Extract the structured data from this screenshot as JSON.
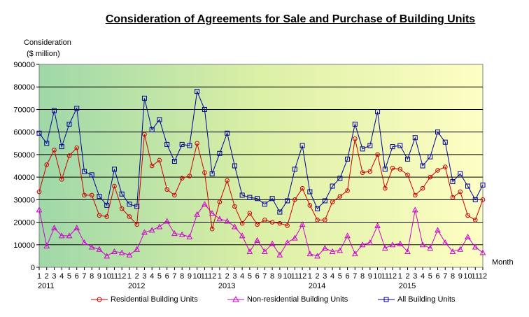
{
  "chart_data": {
    "type": "line",
    "title": "Consideration of Agreements for Sale and Purchase of Building Units",
    "ylabel_line1": "Consideration",
    "ylabel_line2": "($ million)",
    "xlabel": "Month",
    "ylim": [
      0,
      90000
    ],
    "yticks": [
      "0",
      "10000",
      "20000",
      "30000",
      "40000",
      "50000",
      "60000",
      "70000",
      "80000",
      "90000"
    ],
    "month_labels": [
      "1",
      "2",
      "3",
      "4",
      "5",
      "6",
      "7",
      "8",
      "9",
      "10",
      "11",
      "12",
      "1",
      "2",
      "3",
      "4",
      "5",
      "6",
      "7",
      "8",
      "9",
      "10",
      "11",
      "12",
      "1",
      "2",
      "3",
      "4",
      "5",
      "6",
      "7",
      "8",
      "9",
      "10",
      "11",
      "12",
      "1",
      "2",
      "3",
      "4",
      "5",
      "6",
      "7",
      "8",
      "9",
      "10",
      "11",
      "12",
      "1",
      "2",
      "3",
      "4",
      "5",
      "6",
      "7",
      "8",
      "9",
      "10",
      "11",
      "12"
    ],
    "year_labels": [
      {
        "label": "2011",
        "index": 0
      },
      {
        "label": "2012",
        "index": 12
      },
      {
        "label": "2013",
        "index": 24
      },
      {
        "label": "2014",
        "index": 36
      },
      {
        "label": "2015",
        "index": 48
      }
    ],
    "grid": true,
    "legend_position": "bottom",
    "series": [
      {
        "name": "Residential Building Units",
        "color": "#cc0000",
        "marker": "circle",
        "values": [
          33500,
          45500,
          52000,
          39000,
          49500,
          53000,
          32000,
          32000,
          23000,
          22500,
          36000,
          26000,
          22500,
          19000,
          59000,
          45000,
          47500,
          34500,
          32000,
          39500,
          40500,
          55000,
          42000,
          17000,
          29000,
          38500,
          27000,
          19500,
          24000,
          19000,
          21000,
          20000,
          19500,
          18500,
          30000,
          35000,
          27500,
          21000,
          21000,
          29000,
          31500,
          34000,
          57000,
          42000,
          42500,
          50000,
          35000,
          44000,
          43500,
          41000,
          32000,
          35000,
          40000,
          43000,
          44500,
          31000,
          33500,
          23000,
          21000,
          30000
        ]
      },
      {
        "name": "Non-residential Building Units",
        "color": "#cc00cc",
        "marker": "triangle",
        "values": [
          25500,
          9500,
          17500,
          14000,
          14000,
          17500,
          11000,
          9000,
          8000,
          5000,
          7000,
          6500,
          5500,
          8000,
          15500,
          16500,
          18000,
          20500,
          15000,
          14500,
          13500,
          23500,
          28000,
          24000,
          21500,
          20500,
          18000,
          14000,
          7000,
          12000,
          7000,
          10500,
          5500,
          11000,
          13000,
          19000,
          6000,
          5000,
          8500,
          7000,
          7500,
          14000,
          6000,
          10000,
          11000,
          18500,
          8500,
          10000,
          10500,
          7000,
          25500,
          10000,
          8500,
          16500,
          11000,
          7000,
          8000,
          13500,
          9000,
          6500
        ]
      },
      {
        "name": "All Building Units",
        "color": "#000099",
        "marker": "square",
        "values": [
          59500,
          55000,
          69500,
          53500,
          63500,
          70500,
          42500,
          41000,
          31500,
          27500,
          43500,
          32500,
          28000,
          27000,
          75000,
          61000,
          65500,
          54500,
          47000,
          54500,
          54000,
          78000,
          70000,
          41500,
          50500,
          59500,
          45000,
          32000,
          31000,
          30500,
          28000,
          30500,
          24500,
          29500,
          43500,
          54000,
          33500,
          26000,
          29500,
          36000,
          39500,
          48000,
          63500,
          52500,
          54000,
          69000,
          43500,
          53500,
          54000,
          48000,
          57500,
          45000,
          49000,
          60000,
          55500,
          38000,
          41500,
          36000,
          30000,
          36500
        ]
      }
    ]
  }
}
